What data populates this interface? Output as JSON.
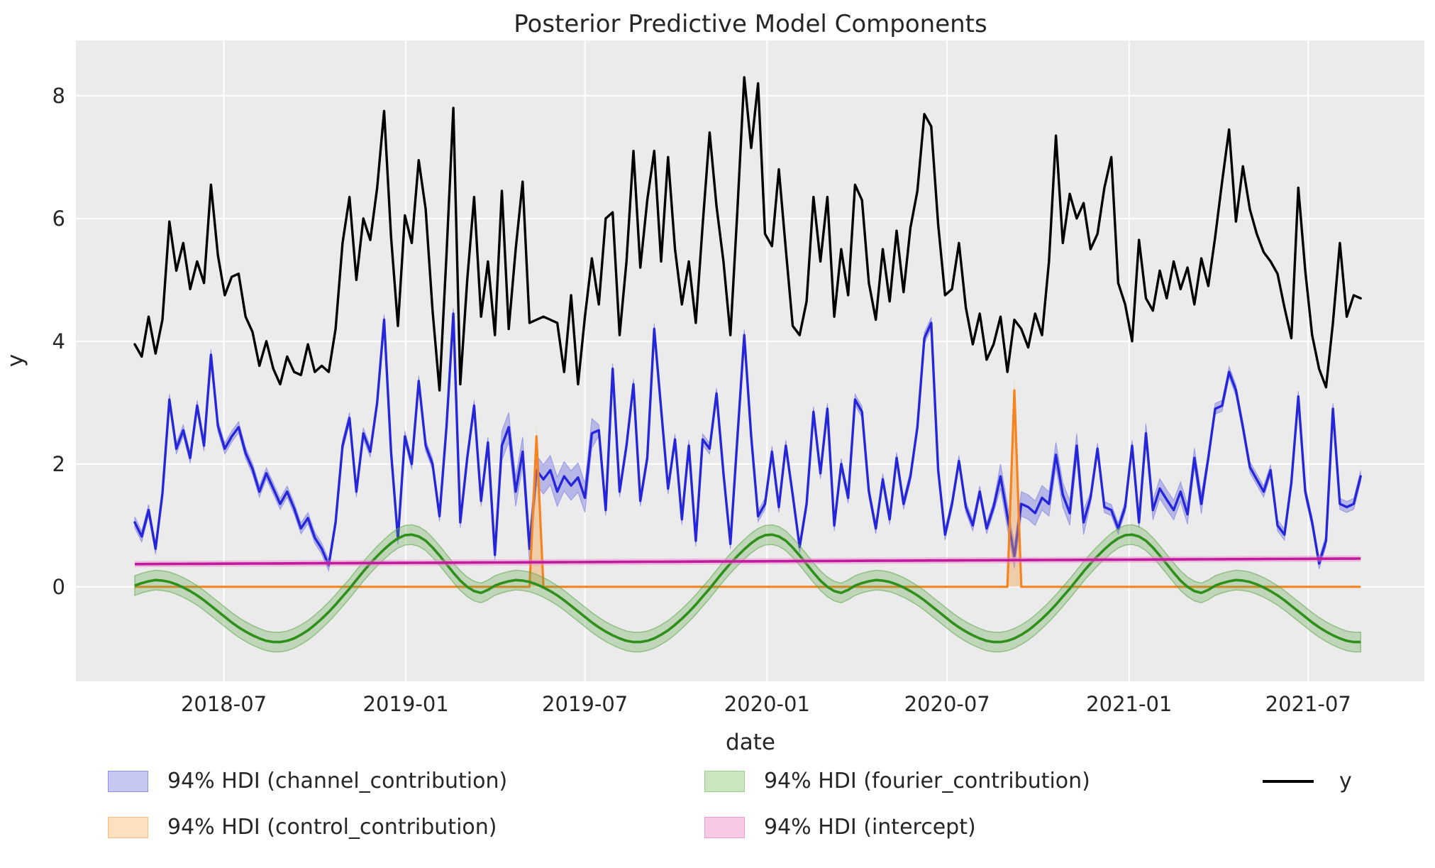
{
  "title": "Posterior Predictive Model Components",
  "axes": {
    "xlabel": "date",
    "ylabel": "y",
    "x_ticks": [
      {
        "label": "2018-07",
        "week": 12.86
      },
      {
        "label": "2019-01",
        "week": 39.14
      },
      {
        "label": "2019-07",
        "week": 65.0
      },
      {
        "label": "2020-01",
        "week": 91.29
      },
      {
        "label": "2020-07",
        "week": 117.29
      },
      {
        "label": "2021-01",
        "week": 143.57
      },
      {
        "label": "2021-07",
        "week": 169.43
      }
    ],
    "y_ticks": [
      0,
      2,
      4,
      6,
      8
    ],
    "ylim": [
      -1.54,
      8.9
    ],
    "xlim_weeks": [
      -8.5,
      186.2
    ]
  },
  "style": {
    "figure_bg": "#ffffff",
    "plot_bg": "#ebebeb",
    "grid_color": "#ffffff",
    "text_color": "#262626",
    "colors": {
      "y_line": "#000000",
      "channel_line": "#2525d9",
      "channel_band": "rgba(105,105,225,0.40)",
      "control_line": "#f5831f",
      "control_band": "rgba(248,160,70,0.40)",
      "fourier_line": "#2f8f1b",
      "fourier_band": "rgba(90,165,70,0.30)",
      "intercept_line": "#bf1b9c",
      "intercept_band": "rgba(235,130,205,0.45)"
    }
  },
  "legend": {
    "items": [
      {
        "label": "94% HDI (channel_contribution)",
        "swatch": "patch",
        "fill": "#c7c7f4",
        "edge": "#9090e8"
      },
      {
        "label": "94% HDI (control_contribution)",
        "swatch": "patch",
        "fill": "#fde0bd",
        "edge": "#f9bd80"
      },
      {
        "label": "94% HDI (fourier_contribution)",
        "swatch": "patch",
        "fill": "#cbe5c0",
        "edge": "#99cf8d"
      },
      {
        "label": "94% HDI (intercept)",
        "swatch": "patch",
        "fill": "#f7c9e6",
        "edge": "#ee9cd2"
      },
      {
        "label": "y",
        "swatch": "line",
        "fill": "#000000",
        "edge": "#000000"
      }
    ]
  },
  "chart_data": {
    "type": "line",
    "x_unit": "weeks",
    "start_date": "2018-04-02",
    "frequency": "weekly",
    "n_points": 178,
    "series": [
      {
        "name": "y",
        "role": "observed-line",
        "values": [
          3.95,
          3.75,
          4.4,
          3.8,
          4.35,
          5.95,
          5.15,
          5.6,
          4.85,
          5.3,
          4.95,
          6.55,
          5.4,
          4.75,
          5.05,
          5.1,
          4.4,
          4.15,
          3.6,
          4.0,
          3.55,
          3.3,
          3.75,
          3.5,
          3.45,
          3.95,
          3.5,
          3.6,
          3.5,
          4.2,
          5.6,
          6.35,
          5.0,
          6.0,
          5.65,
          6.5,
          7.75,
          5.7,
          4.25,
          6.05,
          5.6,
          6.95,
          6.15,
          4.5,
          3.2,
          5.4,
          7.8,
          3.3,
          5.0,
          6.35,
          4.4,
          5.3,
          4.1,
          6.45,
          4.2,
          5.5,
          6.6,
          4.3,
          4.35,
          4.4,
          4.35,
          4.3,
          3.5,
          4.75,
          3.3,
          4.4,
          5.35,
          4.6,
          6.0,
          6.1,
          4.1,
          5.3,
          7.1,
          5.2,
          6.3,
          7.1,
          5.3,
          7.0,
          5.5,
          4.6,
          5.3,
          4.3,
          5.9,
          7.4,
          6.2,
          5.3,
          4.1,
          6.1,
          8.3,
          7.15,
          8.2,
          5.75,
          5.55,
          6.8,
          5.5,
          4.25,
          4.1,
          4.65,
          6.35,
          5.3,
          6.35,
          4.4,
          5.5,
          4.75,
          6.55,
          6.3,
          4.95,
          4.35,
          5.5,
          4.65,
          5.8,
          4.8,
          5.85,
          6.45,
          7.7,
          7.5,
          5.9,
          4.75,
          4.85,
          5.6,
          4.55,
          3.95,
          4.45,
          3.7,
          3.95,
          4.4,
          3.5,
          4.35,
          4.2,
          3.9,
          4.45,
          4.1,
          5.3,
          7.35,
          5.6,
          6.4,
          6.0,
          6.25,
          5.5,
          5.75,
          6.5,
          7.0,
          4.95,
          4.6,
          4.0,
          5.65,
          4.7,
          4.5,
          5.15,
          4.7,
          5.3,
          4.85,
          5.2,
          4.6,
          5.35,
          4.9,
          5.7,
          6.6,
          7.45,
          5.95,
          6.85,
          6.15,
          5.75,
          5.45,
          5.3,
          5.1,
          4.55,
          4.05,
          6.5,
          5.15,
          4.1,
          3.55,
          3.25,
          4.3,
          5.6,
          4.4,
          4.75,
          4.7
        ]
      },
      {
        "name": "channel_contribution",
        "role": "mean-line-with-hdi",
        "hdi_label": "94% HDI",
        "hdi_half_default": 0.09,
        "hdi_wide_regions": [
          [
            53,
            66,
            0.24
          ],
          [
            125,
            137,
            0.2
          ],
          [
            146,
            154,
            0.16
          ]
        ],
        "values": [
          1.05,
          0.82,
          1.25,
          0.62,
          1.52,
          3.05,
          2.25,
          2.55,
          2.1,
          2.95,
          2.3,
          3.78,
          2.62,
          2.25,
          2.45,
          2.6,
          2.18,
          1.92,
          1.55,
          1.85,
          1.6,
          1.35,
          1.55,
          1.28,
          0.95,
          1.12,
          0.8,
          0.62,
          0.35,
          1.05,
          2.3,
          2.75,
          1.55,
          2.5,
          2.2,
          3.0,
          4.35,
          2.2,
          0.78,
          2.45,
          2.0,
          3.35,
          2.3,
          2.0,
          1.15,
          2.6,
          4.45,
          1.05,
          2.1,
          2.95,
          1.4,
          2.35,
          0.52,
          2.3,
          2.6,
          1.55,
          2.2,
          0.62,
          1.9,
          1.75,
          1.9,
          1.55,
          1.8,
          1.65,
          1.78,
          1.45,
          2.5,
          2.55,
          1.25,
          3.55,
          1.55,
          2.3,
          3.3,
          1.4,
          2.1,
          4.2,
          2.9,
          1.6,
          2.4,
          1.1,
          2.3,
          0.75,
          2.4,
          2.25,
          3.15,
          1.85,
          0.7,
          2.4,
          4.1,
          2.45,
          1.15,
          1.35,
          2.2,
          1.3,
          2.3,
          1.5,
          0.65,
          1.35,
          2.85,
          1.85,
          2.9,
          1.0,
          2.0,
          1.45,
          3.05,
          2.85,
          1.55,
          0.95,
          1.75,
          1.1,
          2.1,
          1.35,
          1.8,
          2.6,
          4.05,
          4.3,
          1.9,
          0.85,
          1.35,
          2.05,
          1.3,
          1.0,
          1.55,
          0.95,
          1.3,
          1.8,
          1.15,
          0.5,
          1.35,
          1.3,
          1.2,
          1.45,
          1.35,
          2.15,
          1.5,
          1.2,
          2.3,
          1.05,
          1.45,
          2.25,
          1.3,
          1.25,
          0.95,
          1.3,
          2.3,
          1.05,
          2.5,
          1.25,
          1.6,
          1.42,
          1.25,
          1.55,
          1.18,
          2.1,
          1.35,
          2.1,
          2.9,
          2.95,
          3.5,
          3.2,
          2.6,
          1.95,
          1.75,
          1.55,
          1.9,
          1.0,
          0.85,
          1.7,
          3.1,
          1.55,
          1.05,
          0.38,
          0.75,
          2.9,
          1.35,
          1.3,
          1.35,
          1.8
        ]
      },
      {
        "name": "control_contribution",
        "role": "mean-line-with-hdi",
        "hdi_label": "94% HDI",
        "baseline": 0,
        "spikes": [
          {
            "week": 58,
            "value": 2.45,
            "hdi_top": 2.62
          },
          {
            "week": 127,
            "value": 3.2,
            "hdi_top": 3.4
          }
        ]
      },
      {
        "name": "fourier_contribution",
        "role": "mean-line-with-hdi",
        "hdi_label": "94% HDI",
        "hdi_half": 0.16,
        "pattern52": [
          0.02,
          0.06,
          0.09,
          0.11,
          0.1,
          0.08,
          0.04,
          -0.01,
          -0.07,
          -0.14,
          -0.22,
          -0.31,
          -0.4,
          -0.49,
          -0.58,
          -0.66,
          -0.73,
          -0.79,
          -0.84,
          -0.88,
          -0.9,
          -0.9,
          -0.88,
          -0.84,
          -0.78,
          -0.71,
          -0.62,
          -0.52,
          -0.41,
          -0.29,
          -0.16,
          -0.03,
          0.11,
          0.25,
          0.38,
          0.5,
          0.61,
          0.71,
          0.79,
          0.84,
          0.85,
          0.82,
          0.75,
          0.64,
          0.51,
          0.37,
          0.23,
          0.1,
          0.0,
          -0.07,
          -0.1,
          -0.05
        ]
      },
      {
        "name": "intercept",
        "role": "mean-line-with-hdi",
        "hdi_label": "94% HDI",
        "start": 0.37,
        "end": 0.46,
        "hdi_half": 0.05
      }
    ]
  }
}
